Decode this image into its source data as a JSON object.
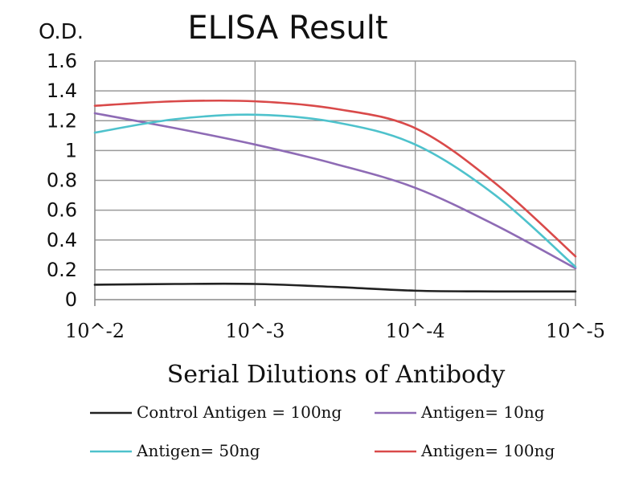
{
  "chart_data": {
    "type": "line",
    "title": "ELISA Result",
    "ylabel": "O.D.",
    "xlabel": "Serial Dilutions of Antibody",
    "ylim": [
      0,
      1.6
    ],
    "yticks": [
      "0",
      "0.2",
      "0.4",
      "0.6",
      "0.8",
      "1",
      "1.2",
      "1.4",
      "1.6"
    ],
    "categories": [
      "10^-2",
      "10^-3",
      "10^-4",
      "10^-5"
    ],
    "grid": true,
    "legend": "bottom",
    "series": [
      {
        "name": "Control Antigen = 100ng",
        "color": "#222222",
        "x": [
          0,
          0.5,
          1,
          1.5,
          2,
          2.5,
          3
        ],
        "values": [
          0.1,
          0.105,
          0.105,
          0.085,
          0.06,
          0.055,
          0.055
        ]
      },
      {
        "name": "Antigen= 10ng",
        "color": "#8e6bb5",
        "x": [
          0,
          0.5,
          1,
          1.5,
          2,
          2.5,
          3
        ],
        "values": [
          1.25,
          1.15,
          1.04,
          0.91,
          0.75,
          0.5,
          0.21
        ]
      },
      {
        "name": "Antigen= 50ng",
        "color": "#4ec2cc",
        "x": [
          0,
          0.5,
          1,
          1.5,
          2,
          2.5,
          3
        ],
        "values": [
          1.12,
          1.21,
          1.24,
          1.19,
          1.04,
          0.7,
          0.22
        ]
      },
      {
        "name": "Antigen= 100ng",
        "color": "#d94a4a",
        "x": [
          0,
          0.5,
          1,
          1.5,
          2,
          2.5,
          3
        ],
        "values": [
          1.3,
          1.33,
          1.33,
          1.28,
          1.15,
          0.78,
          0.29
        ]
      }
    ]
  }
}
